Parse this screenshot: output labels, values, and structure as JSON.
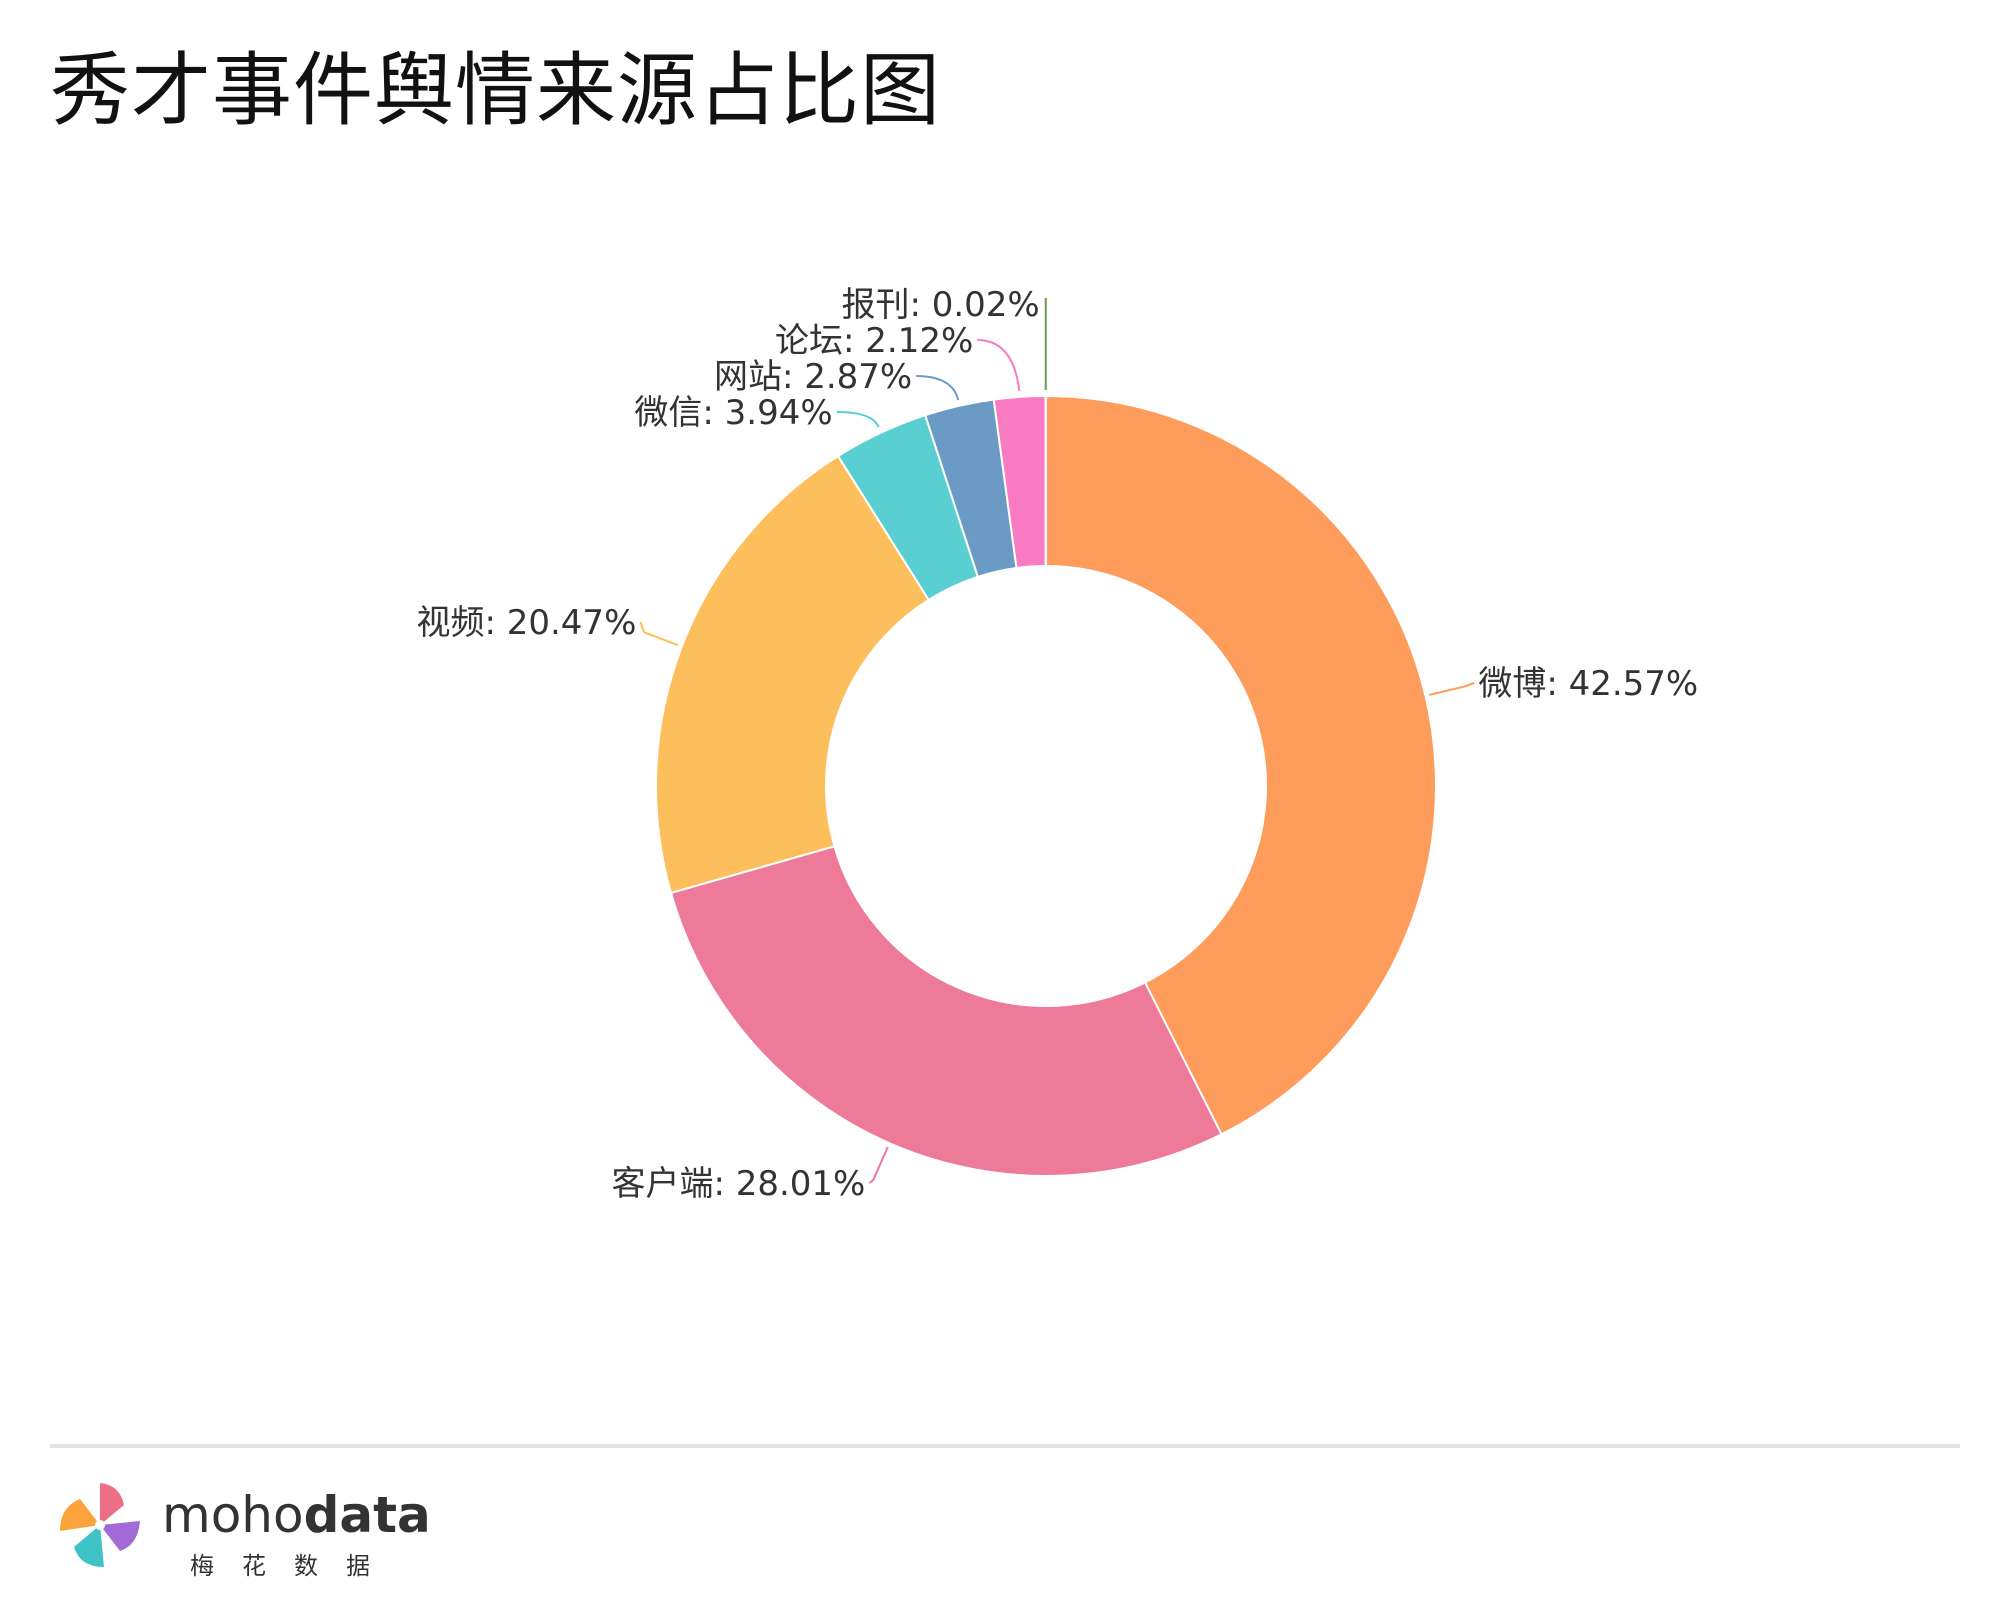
{
  "title": "秀才事件舆情来源占比图",
  "chart_data": {
    "type": "pie",
    "style": "donut",
    "categories": [
      "微博",
      "客户端",
      "视频",
      "微信",
      "网站",
      "论坛",
      "报刊"
    ],
    "values": [
      42.57,
      28.01,
      20.47,
      3.94,
      2.87,
      2.12,
      0.02
    ],
    "labels": [
      "微博: 42.57%",
      "客户端: 28.01%",
      "视频: 20.47%",
      "微信: 3.94%",
      "网站: 2.87%",
      "论坛: 2.12%",
      "报刊: 0.02%"
    ],
    "colors": [
      "#fd9c5b",
      "#ec7a98",
      "#fdbe5c",
      "#59cfd1",
      "#6b9bc4",
      "#f97bc4",
      "#6f9b4a"
    ]
  },
  "footer": {
    "brand_light": "moho",
    "brand_bold": "data",
    "brand_sub": "梅花数据"
  }
}
